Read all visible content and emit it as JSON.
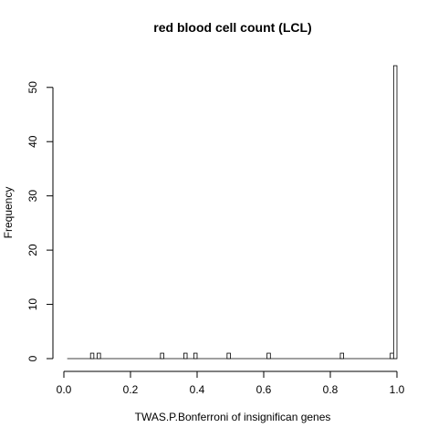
{
  "chart_data": {
    "type": "bar",
    "title": "red blood cell count (LCL)",
    "xlabel": "TWAS.P.Bonferroni of insignifican genes",
    "ylabel": "Frequency",
    "xlim": [
      0.0,
      1.0
    ],
    "ylim": [
      0,
      54
    ],
    "bin_width": 0.01,
    "x_ticks": [
      "0.0",
      "0.2",
      "0.4",
      "0.6",
      "0.8",
      "1.0"
    ],
    "y_ticks": [
      "0",
      "10",
      "20",
      "30",
      "40",
      "50"
    ],
    "bins": [
      {
        "x0": 0.08,
        "x1": 0.09,
        "count": 1
      },
      {
        "x0": 0.1,
        "x1": 0.11,
        "count": 1
      },
      {
        "x0": 0.29,
        "x1": 0.3,
        "count": 1
      },
      {
        "x0": 0.36,
        "x1": 0.37,
        "count": 1
      },
      {
        "x0": 0.39,
        "x1": 0.4,
        "count": 1
      },
      {
        "x0": 0.49,
        "x1": 0.5,
        "count": 1
      },
      {
        "x0": 0.61,
        "x1": 0.62,
        "count": 1
      },
      {
        "x0": 0.83,
        "x1": 0.84,
        "count": 1
      },
      {
        "x0": 0.98,
        "x1": 0.99,
        "count": 1
      },
      {
        "x0": 0.99,
        "x1": 1.0,
        "count": 54
      }
    ],
    "baseline_range": [
      0.01,
      1.0
    ],
    "grid": false,
    "legend": "none"
  }
}
